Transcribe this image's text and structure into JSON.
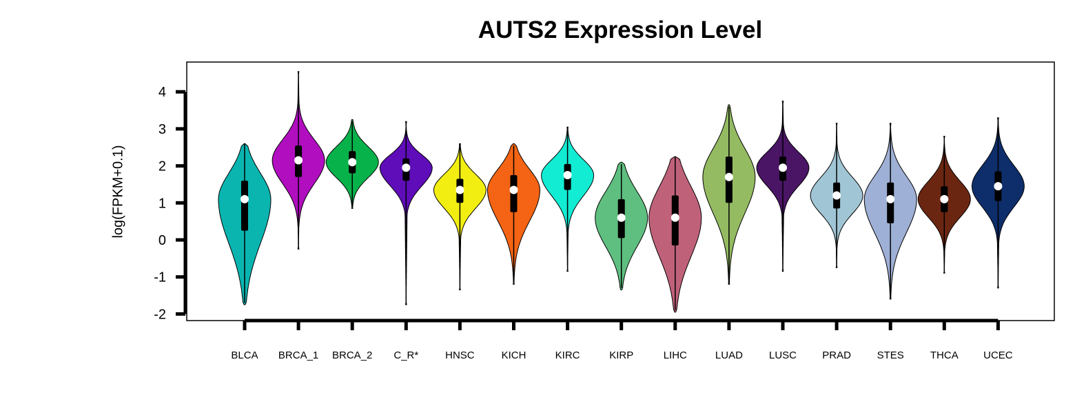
{
  "chart_data": {
    "type": "violin",
    "title": "AUTS2 Expression Level",
    "ylabel": "log(FPKM+0.1)",
    "xlabel": "",
    "ylim": [
      -2,
      4
    ],
    "yticks": [
      "-2",
      "-1",
      "0",
      "1",
      "2",
      "3",
      "4"
    ],
    "grid": false,
    "categories": [
      "BLCA",
      "BRCA_1",
      "BRCA_2",
      "C_R*",
      "HNSC",
      "KICH",
      "KIRC",
      "KIRP",
      "LIHC",
      "LUAD",
      "LUSC",
      "PRAD",
      "STES",
      "THCA",
      "UCEC"
    ],
    "series": [
      {
        "category": "BLCA",
        "color": "#0ab5b0",
        "min": -1.75,
        "max": 2.6,
        "q1": 0.25,
        "median": 1.1,
        "q3": 1.6,
        "whisker_low": -1.7,
        "whisker_high": 2.6
      },
      {
        "category": "BRCA_1",
        "color": "#b10ec0",
        "min": -0.25,
        "max": 4.55,
        "q1": 1.7,
        "median": 2.15,
        "q3": 2.55,
        "whisker_low": -0.2,
        "whisker_high": 4.5
      },
      {
        "category": "BRCA_2",
        "color": "#08b24a",
        "min": 0.85,
        "max": 3.25,
        "q1": 1.8,
        "median": 2.1,
        "q3": 2.4,
        "whisker_low": 0.9,
        "whisker_high": 3.2
      },
      {
        "category": "C_R*",
        "color": "#5e0db9",
        "min": -1.75,
        "max": 3.2,
        "q1": 1.6,
        "median": 1.95,
        "q3": 2.2,
        "whisker_low": -1.75,
        "whisker_high": 3.2
      },
      {
        "category": "HNSC",
        "color": "#f2ee12",
        "min": -1.35,
        "max": 2.6,
        "q1": 1.0,
        "median": 1.35,
        "q3": 1.65,
        "whisker_low": -1.35,
        "whisker_high": 2.6
      },
      {
        "category": "KICH",
        "color": "#f46414",
        "min": -1.2,
        "max": 2.6,
        "q1": 0.75,
        "median": 1.35,
        "q3": 1.75,
        "whisker_low": -1.15,
        "whisker_high": 2.55
      },
      {
        "category": "KIRC",
        "color": "#12ecd3",
        "min": -0.85,
        "max": 3.05,
        "q1": 1.35,
        "median": 1.75,
        "q3": 2.05,
        "whisker_low": -0.85,
        "whisker_high": 3.05
      },
      {
        "category": "KIRP",
        "color": "#5fbf80",
        "min": -1.35,
        "max": 2.1,
        "q1": 0.05,
        "median": 0.6,
        "q3": 1.1,
        "whisker_low": -1.3,
        "whisker_high": 2.05
      },
      {
        "category": "LIHC",
        "color": "#c0617a",
        "min": -1.95,
        "max": 2.25,
        "q1": -0.15,
        "median": 0.6,
        "q3": 1.2,
        "whisker_low": -1.9,
        "whisker_high": 2.25
      },
      {
        "category": "LUAD",
        "color": "#94bb62",
        "min": -1.2,
        "max": 3.65,
        "q1": 1.0,
        "median": 1.7,
        "q3": 2.25,
        "whisker_low": -1.2,
        "whisker_high": 3.6
      },
      {
        "category": "LUSC",
        "color": "#4a1565",
        "min": -0.85,
        "max": 3.75,
        "q1": 1.6,
        "median": 1.95,
        "q3": 2.25,
        "whisker_low": -0.85,
        "whisker_high": 3.75
      },
      {
        "category": "PRAD",
        "color": "#a0c5d5",
        "min": -0.75,
        "max": 3.15,
        "q1": 0.85,
        "median": 1.2,
        "q3": 1.55,
        "whisker_low": -0.75,
        "whisker_high": 3.15
      },
      {
        "category": "STES",
        "color": "#9fb0d6",
        "min": -1.6,
        "max": 3.15,
        "q1": 0.45,
        "median": 1.1,
        "q3": 1.55,
        "whisker_low": -1.6,
        "whisker_high": 3.15
      },
      {
        "category": "THCA",
        "color": "#6b2612",
        "min": -0.9,
        "max": 2.8,
        "q1": 0.75,
        "median": 1.1,
        "q3": 1.45,
        "whisker_low": -0.85,
        "whisker_high": 2.8
      },
      {
        "category": "UCEC",
        "color": "#0e2e6b",
        "min": -1.3,
        "max": 3.3,
        "q1": 1.05,
        "median": 1.45,
        "q3": 1.85,
        "whisker_low": -1.3,
        "whisker_high": 3.3
      }
    ]
  }
}
